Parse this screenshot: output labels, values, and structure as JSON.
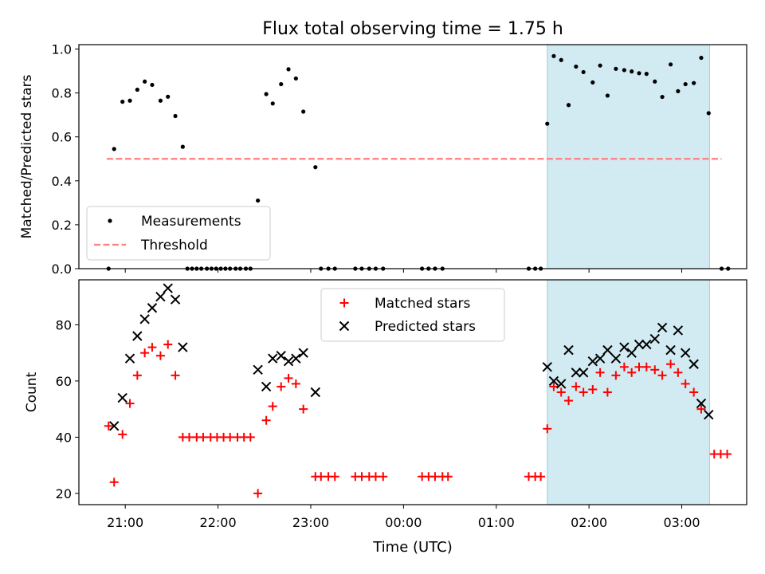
{
  "chart_data": {
    "title": "Flux total observing time = 1.75 h",
    "xlabel": "Time (UTC)",
    "x_unit": "hours (UTC, values past 24 are after midnight)",
    "xlim": [
      20.5,
      27.7
    ],
    "x_ticks": [
      {
        "value": 21,
        "label": "21:00"
      },
      {
        "value": 22,
        "label": "22:00"
      },
      {
        "value": 23,
        "label": "23:00"
      },
      {
        "value": 24,
        "label": "00:00"
      },
      {
        "value": 25,
        "label": "01:00"
      },
      {
        "value": 26,
        "label": "02:00"
      },
      {
        "value": 27,
        "label": "03:00"
      }
    ],
    "shaded_interval": [
      25.55,
      27.3
    ],
    "colors": {
      "shade": "#add8e6",
      "matched": "#ff0000",
      "predicted": "#000000",
      "threshold": "#ff7f7f",
      "measurement": "#000000"
    },
    "panels": [
      {
        "type": "scatter",
        "ylabel": "Matched/Predicted stars",
        "ylim": [
          0,
          1.02
        ],
        "yticks": [
          "0.0",
          "0.2",
          "0.4",
          "0.6",
          "0.8",
          "1.0"
        ],
        "ytick_values": [
          0,
          0.2,
          0.4,
          0.6,
          0.8,
          1.0
        ],
        "legend_position": "lower-left",
        "threshold": {
          "name": "Threshold",
          "value": 0.5,
          "x_range": [
            20.8,
            27.43
          ]
        },
        "series": [
          {
            "name": "Measurements",
            "marker": "dot",
            "points": [
              [
                20.82,
                0
              ],
              [
                20.88,
                0.545
              ],
              [
                20.97,
                0.76
              ],
              [
                21.05,
                0.765
              ],
              [
                21.13,
                0.815
              ],
              [
                21.21,
                0.852
              ],
              [
                21.29,
                0.837
              ],
              [
                21.38,
                0.765
              ],
              [
                21.46,
                0.783
              ],
              [
                21.54,
                0.695
              ],
              [
                21.62,
                0.555
              ],
              [
                21.67,
                0
              ],
              [
                21.72,
                0
              ],
              [
                21.77,
                0
              ],
              [
                21.82,
                0
              ],
              [
                21.88,
                0
              ],
              [
                21.93,
                0
              ],
              [
                21.98,
                0
              ],
              [
                22.03,
                0
              ],
              [
                22.08,
                0
              ],
              [
                22.13,
                0
              ],
              [
                22.19,
                0
              ],
              [
                22.24,
                0
              ],
              [
                22.3,
                0
              ],
              [
                22.35,
                0
              ],
              [
                22.43,
                0.31
              ],
              [
                22.52,
                0.795
              ],
              [
                22.59,
                0.752
              ],
              [
                22.68,
                0.84
              ],
              [
                22.76,
                0.908
              ],
              [
                22.84,
                0.866
              ],
              [
                22.92,
                0.715
              ],
              [
                23.05,
                0.462
              ],
              [
                23.11,
                0
              ],
              [
                23.19,
                0
              ],
              [
                23.26,
                0
              ],
              [
                23.48,
                0
              ],
              [
                23.55,
                0
              ],
              [
                23.63,
                0
              ],
              [
                23.7,
                0
              ],
              [
                23.78,
                0
              ],
              [
                24.2,
                0
              ],
              [
                24.27,
                0
              ],
              [
                24.34,
                0
              ],
              [
                24.42,
                0
              ],
              [
                25.35,
                0
              ],
              [
                25.42,
                0
              ],
              [
                25.48,
                0
              ],
              [
                25.55,
                0.66
              ],
              [
                25.62,
                0.968
              ],
              [
                25.7,
                0.95
              ],
              [
                25.78,
                0.745
              ],
              [
                25.86,
                0.92
              ],
              [
                25.94,
                0.895
              ],
              [
                26.04,
                0.848
              ],
              [
                26.12,
                0.925
              ],
              [
                26.2,
                0.788
              ],
              [
                26.29,
                0.91
              ],
              [
                26.38,
                0.904
              ],
              [
                26.46,
                0.898
              ],
              [
                26.54,
                0.89
              ],
              [
                26.62,
                0.887
              ],
              [
                26.71,
                0.852
              ],
              [
                26.79,
                0.782
              ],
              [
                26.88,
                0.93
              ],
              [
                26.96,
                0.808
              ],
              [
                27.04,
                0.84
              ],
              [
                27.13,
                0.845
              ],
              [
                27.21,
                0.96
              ],
              [
                27.29,
                0.708
              ],
              [
                27.43,
                0
              ],
              [
                27.5,
                0
              ]
            ]
          }
        ]
      },
      {
        "type": "scatter",
        "ylabel": "Count",
        "ylim": [
          16,
          96
        ],
        "yticks": [
          "20",
          "40",
          "60",
          "80"
        ],
        "ytick_values": [
          20,
          40,
          60,
          80
        ],
        "legend_position": "upper-center",
        "series": [
          {
            "name": "Matched stars",
            "marker": "plus",
            "points": [
              [
                20.82,
                44
              ],
              [
                20.88,
                24
              ],
              [
                20.97,
                41
              ],
              [
                21.05,
                52
              ],
              [
                21.13,
                62
              ],
              [
                21.21,
                70
              ],
              [
                21.29,
                72
              ],
              [
                21.38,
                69
              ],
              [
                21.46,
                73
              ],
              [
                21.54,
                62
              ],
              [
                21.62,
                40
              ],
              [
                21.69,
                40
              ],
              [
                21.77,
                40
              ],
              [
                21.84,
                40
              ],
              [
                21.92,
                40
              ],
              [
                21.99,
                40
              ],
              [
                22.06,
                40
              ],
              [
                22.13,
                40
              ],
              [
                22.21,
                40
              ],
              [
                22.28,
                40
              ],
              [
                22.35,
                40
              ],
              [
                22.43,
                20
              ],
              [
                22.52,
                46
              ],
              [
                22.59,
                51
              ],
              [
                22.68,
                58
              ],
              [
                22.76,
                61
              ],
              [
                22.84,
                59
              ],
              [
                22.92,
                50
              ],
              [
                23.05,
                26
              ],
              [
                23.11,
                26
              ],
              [
                23.19,
                26
              ],
              [
                23.26,
                26
              ],
              [
                23.48,
                26
              ],
              [
                23.55,
                26
              ],
              [
                23.63,
                26
              ],
              [
                23.7,
                26
              ],
              [
                23.78,
                26
              ],
              [
                24.2,
                26
              ],
              [
                24.27,
                26
              ],
              [
                24.34,
                26
              ],
              [
                24.42,
                26
              ],
              [
                24.48,
                26
              ],
              [
                25.35,
                26
              ],
              [
                25.42,
                26
              ],
              [
                25.48,
                26
              ],
              [
                25.55,
                43
              ],
              [
                25.62,
                58
              ],
              [
                25.7,
                56
              ],
              [
                25.78,
                53
              ],
              [
                25.86,
                58
              ],
              [
                25.94,
                56
              ],
              [
                26.04,
                57
              ],
              [
                26.12,
                63
              ],
              [
                26.2,
                56
              ],
              [
                26.29,
                62
              ],
              [
                26.38,
                65
              ],
              [
                26.46,
                63
              ],
              [
                26.54,
                65
              ],
              [
                26.62,
                65
              ],
              [
                26.71,
                64
              ],
              [
                26.79,
                62
              ],
              [
                26.88,
                66
              ],
              [
                26.96,
                63
              ],
              [
                27.04,
                59
              ],
              [
                27.13,
                56
              ],
              [
                27.21,
                50
              ],
              [
                27.35,
                34
              ],
              [
                27.42,
                34
              ],
              [
                27.49,
                34
              ]
            ]
          },
          {
            "name": "Predicted stars",
            "marker": "x",
            "points": [
              [
                20.88,
                44
              ],
              [
                20.97,
                54
              ],
              [
                21.05,
                68
              ],
              [
                21.13,
                76
              ],
              [
                21.21,
                82
              ],
              [
                21.29,
                86
              ],
              [
                21.38,
                90
              ],
              [
                21.46,
                93
              ],
              [
                21.54,
                89
              ],
              [
                21.62,
                72
              ],
              [
                22.43,
                64
              ],
              [
                22.52,
                58
              ],
              [
                22.59,
                68
              ],
              [
                22.68,
                69
              ],
              [
                22.76,
                67
              ],
              [
                22.84,
                68
              ],
              [
                22.92,
                70
              ],
              [
                23.05,
                56
              ],
              [
                25.55,
                65
              ],
              [
                25.62,
                60
              ],
              [
                25.7,
                59
              ],
              [
                25.78,
                71
              ],
              [
                25.86,
                63
              ],
              [
                25.94,
                63
              ],
              [
                26.04,
                67
              ],
              [
                26.12,
                68
              ],
              [
                26.2,
                71
              ],
              [
                26.29,
                68
              ],
              [
                26.38,
                72
              ],
              [
                26.46,
                70
              ],
              [
                26.54,
                73
              ],
              [
                26.62,
                73
              ],
              [
                26.71,
                75
              ],
              [
                26.79,
                79
              ],
              [
                26.88,
                71
              ],
              [
                26.96,
                78
              ],
              [
                27.04,
                70
              ],
              [
                27.13,
                66
              ],
              [
                27.21,
                52
              ],
              [
                27.29,
                48
              ]
            ]
          }
        ]
      }
    ]
  }
}
